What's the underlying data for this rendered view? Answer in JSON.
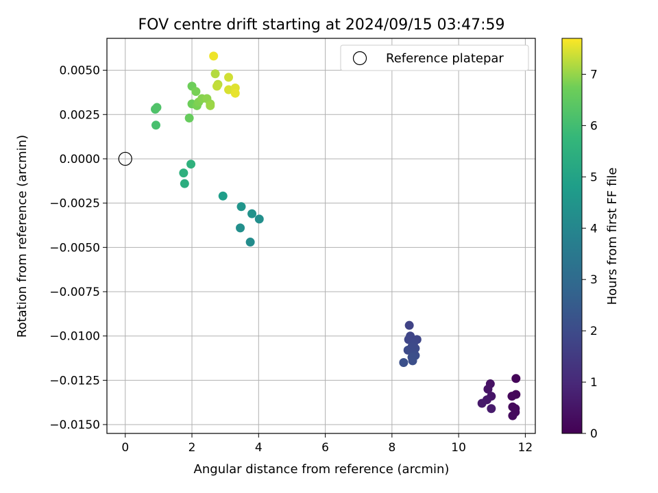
{
  "chart_data": {
    "type": "scatter",
    "title": "FOV centre drift starting at 2024/09/15 03:47:59",
    "xlabel": "Angular distance from reference (arcmin)",
    "ylabel": "Rotation from reference (arcmin)",
    "xlim": [
      -0.55,
      12.3
    ],
    "ylim": [
      -0.0155,
      0.0068
    ],
    "xticks": [
      0,
      2,
      4,
      6,
      8,
      10,
      12
    ],
    "yticks": [
      0.005,
      0.0025,
      0.0,
      -0.0025,
      -0.005,
      -0.0075,
      -0.01,
      -0.0125,
      -0.015
    ],
    "ytick_labels": [
      "0.0050",
      "0.0025",
      "0.0000",
      "−0.0025",
      "−0.0050",
      "−0.0075",
      "−0.0100",
      "−0.0125",
      "−0.0150"
    ],
    "xtick_labels": [
      "0",
      "2",
      "4",
      "6",
      "8",
      "10",
      "12"
    ],
    "grid": true,
    "legend": {
      "position": "top-right",
      "entries": [
        "Reference platepar"
      ]
    },
    "reference_point": {
      "x": 0,
      "y": 0
    },
    "colorbar": {
      "label": "Hours from first FF file",
      "min": 0,
      "max": 7.7,
      "ticks": [
        0,
        1,
        2,
        3,
        4,
        5,
        6,
        7
      ],
      "colormap": "viridis"
    },
    "points": [
      {
        "x": 11.72,
        "y": -0.0124,
        "c": 0.1
      },
      {
        "x": 11.72,
        "y": -0.0133,
        "c": 0.12
      },
      {
        "x": 11.6,
        "y": -0.0134,
        "c": 0.15
      },
      {
        "x": 11.7,
        "y": -0.0141,
        "c": 0.18
      },
      {
        "x": 11.62,
        "y": -0.014,
        "c": 0.2
      },
      {
        "x": 11.7,
        "y": -0.0143,
        "c": 0.22
      },
      {
        "x": 11.62,
        "y": -0.0145,
        "c": 0.25
      },
      {
        "x": 10.95,
        "y": -0.0127,
        "c": 0.4
      },
      {
        "x": 10.88,
        "y": -0.013,
        "c": 0.45
      },
      {
        "x": 10.98,
        "y": -0.0134,
        "c": 0.5
      },
      {
        "x": 10.85,
        "y": -0.0136,
        "c": 0.55
      },
      {
        "x": 10.7,
        "y": -0.0138,
        "c": 0.6
      },
      {
        "x": 10.98,
        "y": -0.0141,
        "c": 0.65
      },
      {
        "x": 8.52,
        "y": -0.0094,
        "c": 1.75
      },
      {
        "x": 8.55,
        "y": -0.01,
        "c": 1.8
      },
      {
        "x": 8.75,
        "y": -0.0102,
        "c": 1.85
      },
      {
        "x": 8.5,
        "y": -0.0102,
        "c": 1.85
      },
      {
        "x": 8.65,
        "y": -0.0104,
        "c": 1.9
      },
      {
        "x": 8.6,
        "y": -0.0106,
        "c": 1.95
      },
      {
        "x": 8.7,
        "y": -0.0107,
        "c": 1.95
      },
      {
        "x": 8.48,
        "y": -0.0108,
        "c": 2.0
      },
      {
        "x": 8.65,
        "y": -0.0109,
        "c": 2.0
      },
      {
        "x": 8.7,
        "y": -0.0111,
        "c": 2.05
      },
      {
        "x": 8.6,
        "y": -0.0112,
        "c": 2.1
      },
      {
        "x": 8.62,
        "y": -0.0114,
        "c": 2.1
      },
      {
        "x": 8.35,
        "y": -0.0115,
        "c": 2.15
      },
      {
        "x": 3.75,
        "y": -0.0047,
        "c": 4.2
      },
      {
        "x": 3.45,
        "y": -0.0039,
        "c": 4.3
      },
      {
        "x": 4.02,
        "y": -0.0034,
        "c": 4.3
      },
      {
        "x": 3.8,
        "y": -0.0031,
        "c": 4.4
      },
      {
        "x": 3.48,
        "y": -0.0027,
        "c": 4.5
      },
      {
        "x": 2.93,
        "y": -0.0021,
        "c": 4.8
      },
      {
        "x": 1.78,
        "y": -0.0014,
        "c": 5.4
      },
      {
        "x": 1.75,
        "y": -0.0008,
        "c": 5.5
      },
      {
        "x": 1.97,
        "y": -0.0003,
        "c": 5.55
      },
      {
        "x": 0.92,
        "y": 0.0019,
        "c": 6.1
      },
      {
        "x": 0.9,
        "y": 0.0028,
        "c": 6.2
      },
      {
        "x": 0.95,
        "y": 0.0029,
        "c": 6.25
      },
      {
        "x": 1.92,
        "y": 0.0023,
        "c": 6.6
      },
      {
        "x": 2.0,
        "y": 0.0031,
        "c": 6.7
      },
      {
        "x": 2.15,
        "y": 0.003,
        "c": 6.8
      },
      {
        "x": 2.2,
        "y": 0.0032,
        "c": 6.85
      },
      {
        "x": 2.3,
        "y": 0.0034,
        "c": 6.9
      },
      {
        "x": 2.45,
        "y": 0.0034,
        "c": 6.95
      },
      {
        "x": 2.55,
        "y": 0.0031,
        "c": 7.0
      },
      {
        "x": 2.0,
        "y": 0.0041,
        "c": 6.7
      },
      {
        "x": 2.12,
        "y": 0.0038,
        "c": 6.8
      },
      {
        "x": 2.55,
        "y": 0.003,
        "c": 7.05
      },
      {
        "x": 2.7,
        "y": 0.0048,
        "c": 7.2
      },
      {
        "x": 2.78,
        "y": 0.0042,
        "c": 7.25
      },
      {
        "x": 2.75,
        "y": 0.0041,
        "c": 7.3
      },
      {
        "x": 3.1,
        "y": 0.0046,
        "c": 7.4
      },
      {
        "x": 3.1,
        "y": 0.0039,
        "c": 7.45
      },
      {
        "x": 3.3,
        "y": 0.004,
        "c": 7.5
      },
      {
        "x": 3.3,
        "y": 0.0037,
        "c": 7.55
      },
      {
        "x": 2.65,
        "y": 0.0058,
        "c": 7.6
      }
    ]
  }
}
